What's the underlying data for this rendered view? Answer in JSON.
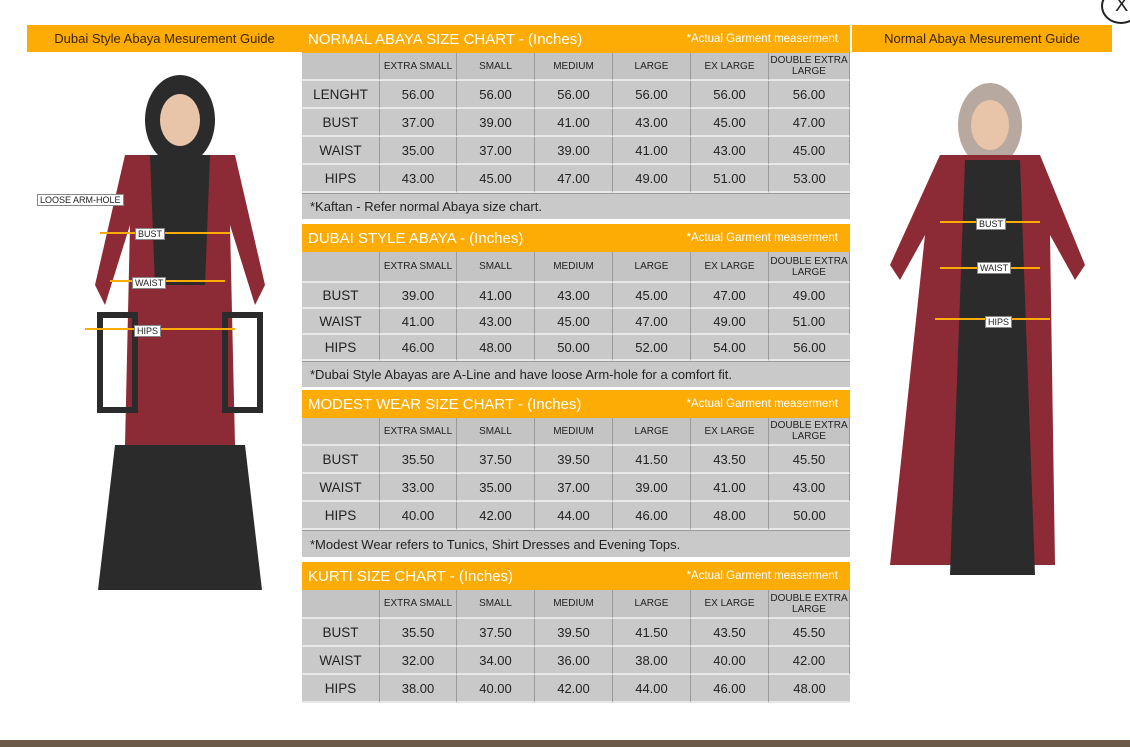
{
  "left_guide": {
    "title": "Dubai Style Abaya Mesurement Guide",
    "labels": [
      "LOOSE ARM-HOLE",
      "BUST",
      "WAIST",
      "HIPS"
    ]
  },
  "right_guide": {
    "title": "Normal Abaya Mesurement Guide",
    "labels": [
      "BUST",
      "WAIST",
      "HIPS"
    ]
  },
  "close_label": "X",
  "columns": [
    "EXTRA SMALL",
    "SMALL",
    "MEDIUM",
    "LARGE",
    "EX LARGE",
    "DOUBLE EXTRA LARGE"
  ],
  "charts": [
    {
      "title": "NORMAL ABAYA SIZE CHART - (Inches)",
      "subtitle": "*Actual Garment measerment",
      "rows": [
        {
          "label": "LENGHT",
          "values": [
            "56.00",
            "56.00",
            "56.00",
            "56.00",
            "56.00",
            "56.00"
          ]
        },
        {
          "label": "BUST",
          "values": [
            "37.00",
            "39.00",
            "41.00",
            "43.00",
            "45.00",
            "47.00"
          ]
        },
        {
          "label": "WAIST",
          "values": [
            "35.00",
            "37.00",
            "39.00",
            "41.00",
            "43.00",
            "45.00"
          ]
        },
        {
          "label": "HIPS",
          "values": [
            "43.00",
            "45.00",
            "47.00",
            "49.00",
            "51.00",
            "53.00"
          ]
        }
      ],
      "note": "*Kaftan - Refer normal Abaya size chart."
    },
    {
      "title": "DUBAI STYLE ABAYA - (Inches)",
      "subtitle": "*Actual Garment measerment",
      "rows": [
        {
          "label": "BUST",
          "values": [
            "39.00",
            "41.00",
            "43.00",
            "45.00",
            "47.00",
            "49.00"
          ]
        },
        {
          "label": "WAIST",
          "values": [
            "41.00",
            "43.00",
            "45.00",
            "47.00",
            "49.00",
            "51.00"
          ]
        },
        {
          "label": "HIPS",
          "values": [
            "46.00",
            "48.00",
            "50.00",
            "52.00",
            "54.00",
            "56.00"
          ]
        }
      ],
      "note": "*Dubai Style Abayas are A-Line and have loose Arm-hole for a comfort fit."
    },
    {
      "title": "MODEST WEAR SIZE CHART - (Inches)",
      "subtitle": "*Actual Garment measerment",
      "rows": [
        {
          "label": "BUST",
          "values": [
            "35.50",
            "37.50",
            "39.50",
            "41.50",
            "43.50",
            "45.50"
          ]
        },
        {
          "label": "WAIST",
          "values": [
            "33.00",
            "35.00",
            "37.00",
            "39.00",
            "41.00",
            "43.00"
          ]
        },
        {
          "label": "HIPS",
          "values": [
            "40.00",
            "42.00",
            "44.00",
            "46.00",
            "48.00",
            "50.00"
          ]
        }
      ],
      "note": "*Modest Wear refers to Tunics, Shirt Dresses and Evening Tops."
    },
    {
      "title": "KURTI SIZE CHART - (Inches)",
      "subtitle": "*Actual Garment measerment",
      "rows": [
        {
          "label": "BUST",
          "values": [
            "35.50",
            "37.50",
            "39.50",
            "41.50",
            "43.50",
            "45.50"
          ]
        },
        {
          "label": "WAIST",
          "values": [
            "32.00",
            "34.00",
            "36.00",
            "38.00",
            "40.00",
            "42.00"
          ]
        },
        {
          "label": "HIPS",
          "values": [
            "38.00",
            "40.00",
            "42.00",
            "44.00",
            "46.00",
            "48.00"
          ]
        }
      ],
      "note": ""
    }
  ],
  "colors": {
    "accent": "#fdab05",
    "table_bg": "#c9c9c9",
    "garment": "#8c2a35",
    "dark": "#2b2b2b"
  }
}
